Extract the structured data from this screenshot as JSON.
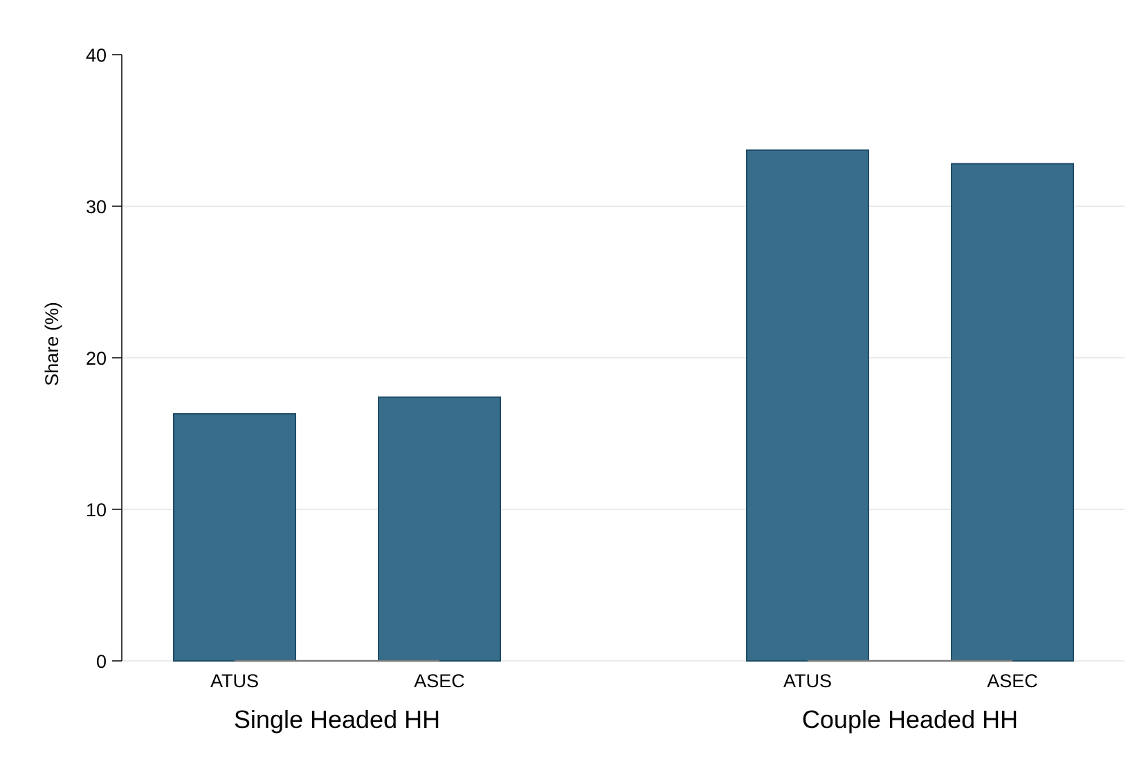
{
  "chart_data": {
    "type": "bar",
    "title": "",
    "ylabel": "Share (%)",
    "ylim": [
      0,
      40
    ],
    "yticks": [
      0,
      10,
      20,
      30,
      40
    ],
    "grid": true,
    "bar_color": "#376d8b",
    "bar_edge_color": "#1f4d66",
    "groups": [
      {
        "label": "Single Headed HH",
        "bars": [
          {
            "category": "ATUS",
            "value": 16.3
          },
          {
            "category": "ASEC",
            "value": 17.4
          }
        ]
      },
      {
        "label": "Couple Headed HH",
        "bars": [
          {
            "category": "ATUS",
            "value": 33.7
          },
          {
            "category": "ASEC",
            "value": 32.8
          }
        ]
      }
    ]
  }
}
